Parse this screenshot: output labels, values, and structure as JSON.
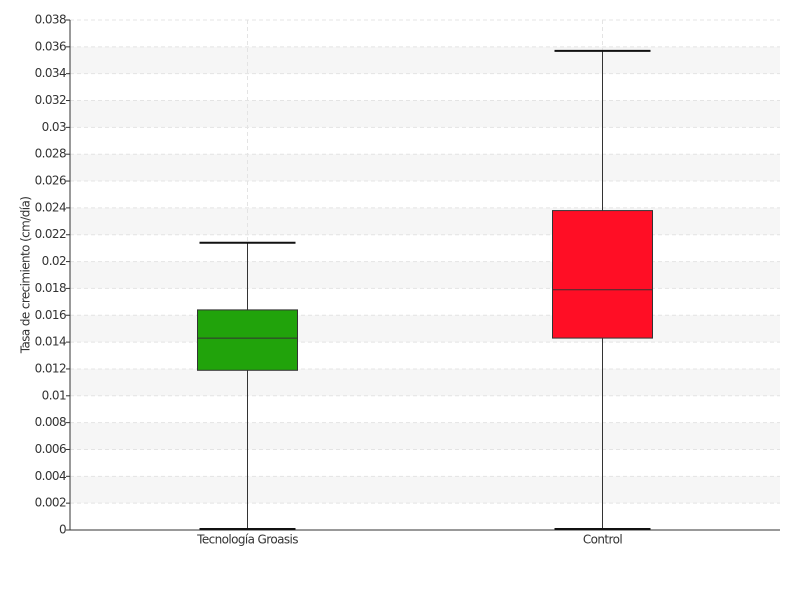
{
  "chart_data": {
    "type": "box",
    "y_label": "Tasa de crecimiento (cm/día)",
    "categories": [
      "Tecnología Groasis",
      "Control"
    ],
    "boxes": [
      {
        "min": 0,
        "q1": 0.0119,
        "median": 0.0143,
        "q3": 0.0164,
        "max": 0.0214,
        "color": "#21a30b"
      },
      {
        "min": 0,
        "q1": 0.0143,
        "median": 0.0179,
        "q3": 0.0238,
        "max": 0.0357,
        "color": "#ff0e25"
      }
    ],
    "ylim": [
      0,
      0.038
    ],
    "yticks": [
      0,
      0.002,
      0.004,
      0.006,
      0.008,
      0.01,
      0.012,
      0.014,
      0.016,
      0.018,
      0.02,
      0.022,
      0.024,
      0.026,
      0.028,
      0.03,
      0.032,
      0.034,
      0.036,
      0.038
    ],
    "grid": true
  }
}
